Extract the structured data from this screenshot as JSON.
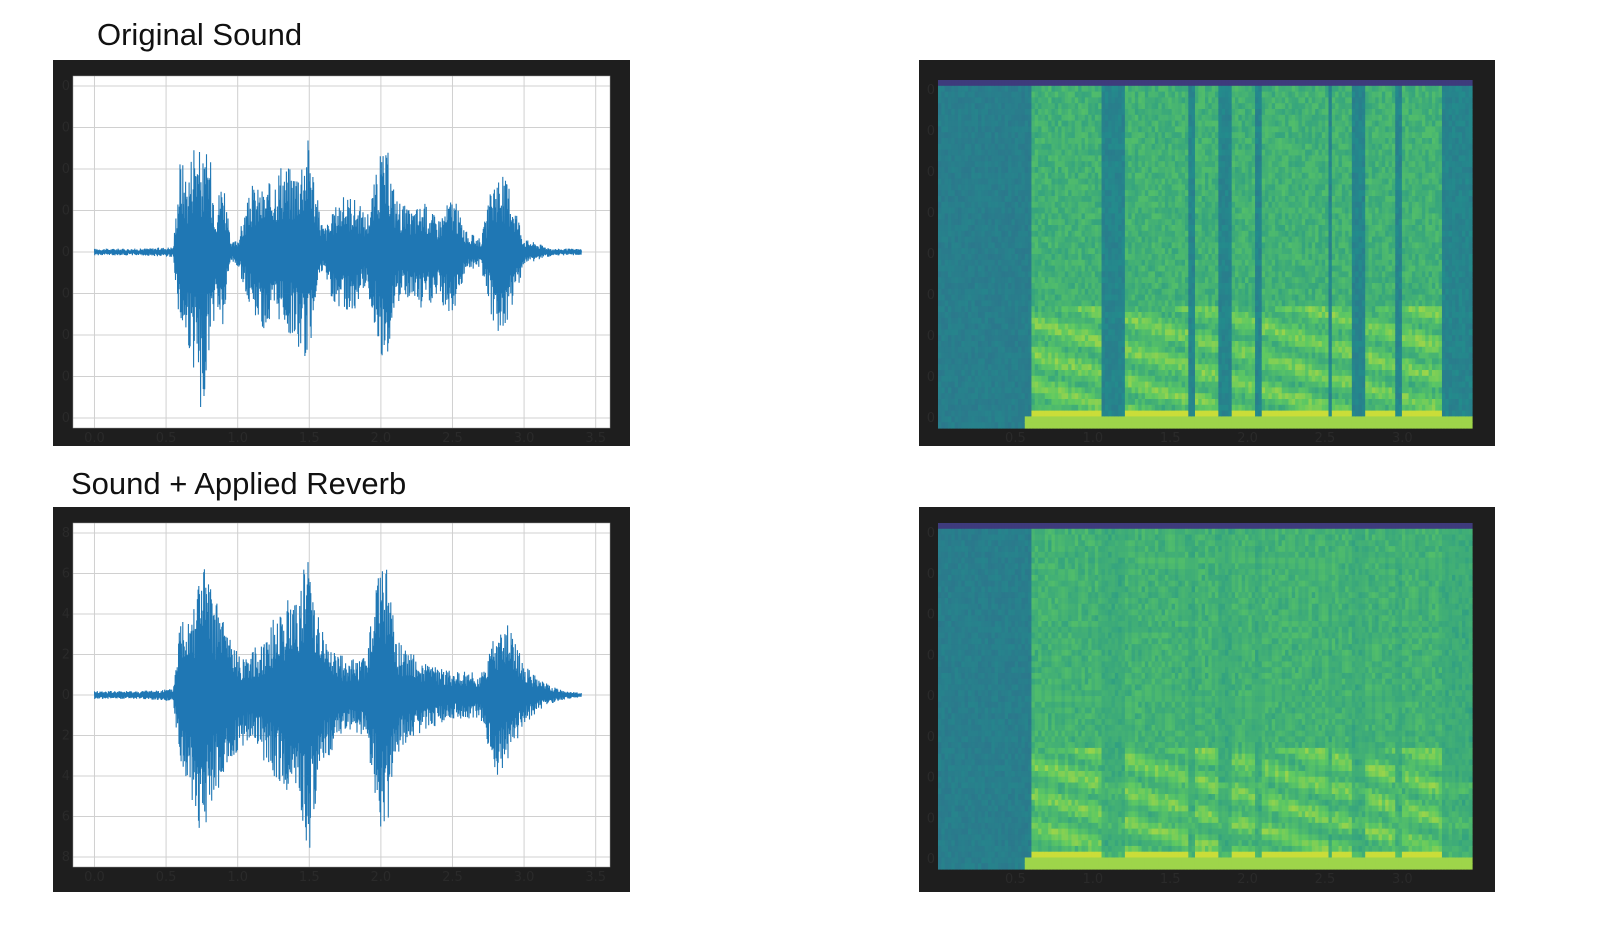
{
  "titles": {
    "top": "Original Sound",
    "bottom": "Sound + Applied Reverb"
  },
  "colors": {
    "frame": "#1e1e1e",
    "waveform": "#1f77b4",
    "grid": "#d0d0d0"
  },
  "chart_data": [
    {
      "type": "line",
      "title": "Original Sound",
      "xlabel": "",
      "ylabel": "",
      "xlim": [
        -0.15,
        3.6
      ],
      "ylim": [
        -1.05,
        1.05
      ],
      "x_ticks": [
        "0.0",
        "0.5",
        "1.0",
        "1.5",
        "2.0",
        "2.5",
        "3.0",
        "3.5"
      ],
      "grid": true,
      "envelope": {
        "x": [
          0.0,
          0.3,
          0.55,
          0.6,
          0.65,
          0.7,
          0.75,
          0.8,
          0.85,
          0.9,
          0.95,
          1.0,
          1.1,
          1.2,
          1.3,
          1.4,
          1.5,
          1.55,
          1.6,
          1.65,
          1.7,
          1.8,
          1.9,
          2.0,
          2.05,
          2.1,
          2.2,
          2.3,
          2.4,
          2.5,
          2.6,
          2.7,
          2.8,
          2.9,
          3.0,
          3.1,
          3.2,
          3.4
        ],
        "upper": [
          0.02,
          0.02,
          0.03,
          0.6,
          0.45,
          0.75,
          0.55,
          0.62,
          0.3,
          0.5,
          0.05,
          0.08,
          0.4,
          0.38,
          0.55,
          0.5,
          0.72,
          0.35,
          0.15,
          0.2,
          0.32,
          0.35,
          0.22,
          0.6,
          0.6,
          0.35,
          0.25,
          0.3,
          0.2,
          0.35,
          0.12,
          0.08,
          0.5,
          0.42,
          0.08,
          0.05,
          0.02,
          0.02
        ],
        "lower": [
          -0.02,
          -0.02,
          -0.03,
          -0.5,
          -0.58,
          -0.75,
          -1.0,
          -0.62,
          -0.35,
          -0.5,
          -0.05,
          -0.1,
          -0.35,
          -0.5,
          -0.42,
          -0.55,
          -0.68,
          -0.22,
          -0.12,
          -0.28,
          -0.32,
          -0.38,
          -0.2,
          -0.62,
          -0.6,
          -0.3,
          -0.3,
          -0.35,
          -0.3,
          -0.38,
          -0.1,
          -0.1,
          -0.5,
          -0.4,
          -0.08,
          -0.05,
          -0.02,
          -0.02
        ]
      }
    },
    {
      "type": "heatmap",
      "title": "",
      "xlabel": "",
      "ylabel": "",
      "xlim": [
        0.0,
        3.45
      ],
      "x_ticks": [
        "0.5",
        "1.0",
        "1.5",
        "2.0",
        "2.5",
        "3.0"
      ],
      "colormap": "viridis",
      "speech_segments": [
        [
          0.6,
          1.05
        ],
        [
          1.2,
          1.62
        ],
        [
          1.65,
          1.82
        ],
        [
          1.9,
          2.05
        ],
        [
          2.1,
          2.52
        ],
        [
          2.55,
          2.68
        ],
        [
          2.75,
          2.95
        ],
        [
          3.0,
          3.25
        ]
      ],
      "reverb": false
    },
    {
      "type": "line",
      "title": "Sound + Applied Reverb",
      "xlabel": "",
      "ylabel": "",
      "xlim": [
        -0.15,
        3.6
      ],
      "ylim": [
        -0.85,
        0.85
      ],
      "x_ticks": [
        "0.0",
        "0.5",
        "1.0",
        "1.5",
        "2.0",
        "2.5",
        "3.0",
        "3.5"
      ],
      "y_ticks": [
        "8",
        "6",
        "4",
        "2",
        "0",
        "2",
        "4",
        "6",
        "8"
      ],
      "grid": true,
      "envelope": {
        "x": [
          0.0,
          0.3,
          0.55,
          0.6,
          0.7,
          0.75,
          0.8,
          0.9,
          1.0,
          1.1,
          1.2,
          1.3,
          1.4,
          1.5,
          1.6,
          1.7,
          1.8,
          1.9,
          2.0,
          2.05,
          2.1,
          2.2,
          2.3,
          2.4,
          2.5,
          2.6,
          2.7,
          2.8,
          2.9,
          3.0,
          3.1,
          3.2,
          3.3,
          3.4
        ],
        "upper": [
          0.02,
          0.02,
          0.03,
          0.4,
          0.52,
          0.72,
          0.55,
          0.4,
          0.2,
          0.22,
          0.3,
          0.45,
          0.5,
          0.72,
          0.3,
          0.2,
          0.18,
          0.2,
          0.72,
          0.65,
          0.28,
          0.22,
          0.16,
          0.14,
          0.12,
          0.12,
          0.1,
          0.32,
          0.35,
          0.15,
          0.08,
          0.04,
          0.02,
          0.01
        ],
        "lower": [
          -0.02,
          -0.02,
          -0.03,
          -0.35,
          -0.6,
          -0.75,
          -0.58,
          -0.4,
          -0.28,
          -0.2,
          -0.35,
          -0.45,
          -0.5,
          -0.78,
          -0.35,
          -0.22,
          -0.18,
          -0.22,
          -0.68,
          -0.62,
          -0.3,
          -0.22,
          -0.18,
          -0.15,
          -0.12,
          -0.12,
          -0.12,
          -0.42,
          -0.3,
          -0.15,
          -0.08,
          -0.04,
          -0.02,
          -0.01
        ]
      }
    },
    {
      "type": "heatmap",
      "title": "",
      "xlabel": "",
      "ylabel": "",
      "xlim": [
        0.0,
        3.45
      ],
      "x_ticks": [
        "0.5",
        "1.0",
        "1.5",
        "2.0",
        "2.5",
        "3.0"
      ],
      "colormap": "viridis",
      "speech_segments": [
        [
          0.6,
          1.05
        ],
        [
          1.2,
          1.62
        ],
        [
          1.65,
          1.82
        ],
        [
          1.9,
          2.05
        ],
        [
          2.1,
          2.52
        ],
        [
          2.55,
          2.68
        ],
        [
          2.75,
          2.95
        ],
        [
          3.0,
          3.25
        ]
      ],
      "reverb": true
    }
  ]
}
